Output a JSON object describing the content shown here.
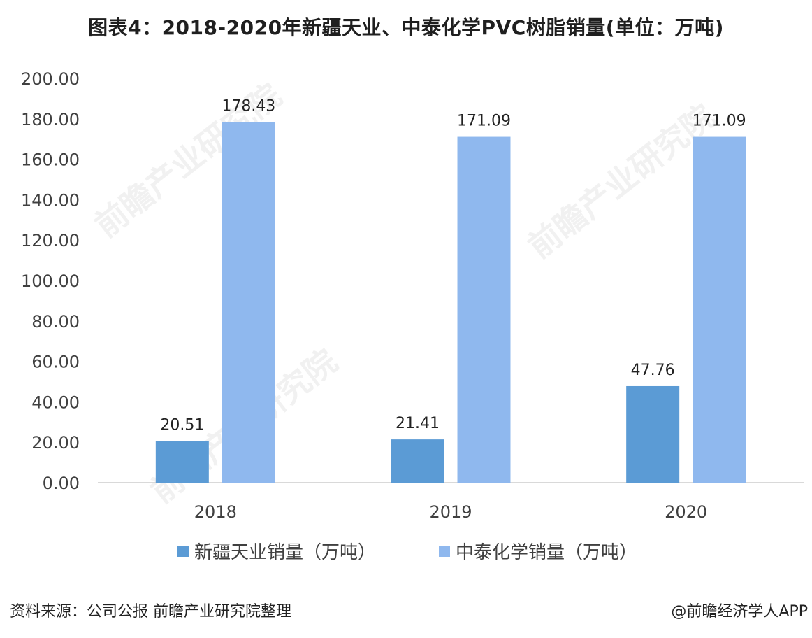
{
  "title": "图表4：2018-2020年新疆天业、中泰化学PVC树脂销量(单位：万吨)",
  "source": "资料来源：公司公报 前瞻产业研究院整理",
  "credit": "@前瞻经济学人APP",
  "watermark": "前瞻产业研究院",
  "colors": {
    "series1": "#5b9bd5",
    "series2": "#8fb8ee",
    "axis": "#d9d9d9",
    "text": "#404040"
  },
  "chart_data": {
    "type": "bar",
    "categories": [
      "2018",
      "2019",
      "2020"
    ],
    "series": [
      {
        "name": "新疆天业销量（万吨）",
        "values": [
          20.51,
          21.41,
          47.76
        ],
        "labels": [
          "20.51",
          "21.41",
          "47.76"
        ]
      },
      {
        "name": "中泰化学销量（万吨）",
        "values": [
          178.43,
          171.09,
          171.09
        ],
        "labels": [
          "178.43",
          "171.09",
          "171.09"
        ]
      }
    ],
    "ylim": [
      0,
      200
    ],
    "yticks": [
      "0.00",
      "20.00",
      "40.00",
      "60.00",
      "80.00",
      "100.00",
      "120.00",
      "140.00",
      "160.00",
      "180.00",
      "200.00"
    ],
    "grid": false,
    "legend": "bottom"
  }
}
